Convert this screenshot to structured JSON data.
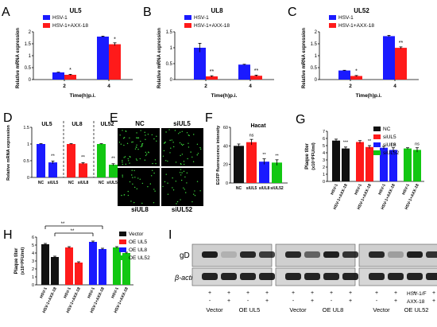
{
  "colors": {
    "blue": "#1a1aff",
    "red": "#ff1a1a",
    "green": "#12c712",
    "black": "#111111",
    "axis": "#000000"
  },
  "chart_data": [
    {
      "panel": "A",
      "type": "bar",
      "title": "UL5",
      "ylabel": "Relative mRNA expression",
      "xlabel": "Time(h)p.i.",
      "categories": [
        "2",
        "4"
      ],
      "ylim": [
        0,
        2.0
      ],
      "series": [
        {
          "name": "HSV-1",
          "color": "blue",
          "values": [
            0.3,
            1.8
          ],
          "err": [
            0.01,
            0.02
          ]
        },
        {
          "name": "HSV-1+AXX-18",
          "color": "red",
          "values": [
            0.2,
            1.48
          ],
          "err": [
            0.02,
            0.06
          ]
        }
      ],
      "stars": [
        "*",
        "*"
      ]
    },
    {
      "panel": "B",
      "type": "bar",
      "title": "UL8",
      "ylabel": "Relative mRNA expression",
      "xlabel": "Time(h)p.i.",
      "categories": [
        "2",
        "4"
      ],
      "ylim": [
        0,
        1.5
      ],
      "series": [
        {
          "name": "HSV-1",
          "color": "blue",
          "values": [
            1.0,
            0.47
          ],
          "err": [
            0.14,
            0.01
          ]
        },
        {
          "name": "HSV-1+AXX-18",
          "color": "red",
          "values": [
            0.1,
            0.12
          ],
          "err": [
            0.02,
            0.02
          ]
        }
      ],
      "stars": [
        "**",
        "**"
      ]
    },
    {
      "panel": "C",
      "type": "bar",
      "title": "UL52",
      "ylabel": "Relative mRNA expression",
      "xlabel": "Time(h)p.i.",
      "categories": [
        "2",
        "4"
      ],
      "ylim": [
        0,
        2.0
      ],
      "series": [
        {
          "name": "HSV-1",
          "color": "blue",
          "values": [
            0.38,
            1.82
          ],
          "err": [
            0.01,
            0.03
          ]
        },
        {
          "name": "HSV-1+AXX-18",
          "color": "red",
          "values": [
            0.15,
            1.33
          ],
          "err": [
            0.02,
            0.04
          ]
        }
      ],
      "stars": [
        "*",
        "**"
      ]
    },
    {
      "panel": "D",
      "type": "bar",
      "ylabel": "Relative mRNA expression",
      "ylim": [
        0,
        1.5
      ],
      "groups": [
        {
          "title": "UL5",
          "labels": [
            "NC",
            "siUL5"
          ],
          "colors": [
            "blue",
            "blue"
          ],
          "values": [
            1.0,
            0.45
          ],
          "err": [
            0.01,
            0.04
          ],
          "stars": [
            "",
            "**"
          ]
        },
        {
          "title": "UL8",
          "labels": [
            "NC",
            "siUL8"
          ],
          "colors": [
            "red",
            "red"
          ],
          "values": [
            1.0,
            0.42
          ],
          "err": [
            0.01,
            0.02
          ],
          "stars": [
            "",
            "**"
          ]
        },
        {
          "title": "UL52",
          "labels": [
            "NC",
            "siUL52"
          ],
          "colors": [
            "green",
            "green"
          ],
          "values": [
            1.0,
            0.38
          ],
          "err": [
            0.01,
            0.03
          ],
          "stars": [
            "",
            "**"
          ]
        }
      ]
    },
    {
      "panel": "F",
      "type": "bar",
      "title": "Hacat",
      "ylabel": "EGFP fluorescence intensity",
      "ylim": [
        0,
        60
      ],
      "categories": [
        "NC",
        "siUL5",
        "siUL8",
        "siUL52"
      ],
      "colors": [
        "black",
        "red",
        "blue",
        "green"
      ],
      "values": [
        40,
        44,
        23,
        22
      ],
      "err": [
        2,
        3,
        3,
        3
      ],
      "stars": [
        "",
        "ns",
        "**",
        "**"
      ]
    },
    {
      "panel": "G",
      "type": "bar",
      "ylabel": "Plaque titer",
      "ylabel2": "(x10⁵PFU/ml)",
      "ylim": [
        0,
        7
      ],
      "yticks": [
        0,
        1,
        2,
        3,
        4,
        5,
        6,
        7
      ],
      "groups": [
        {
          "name": "NC",
          "color": "black",
          "labels": [
            "HSV-1",
            "HSV-1+AXX-18"
          ],
          "values": [
            5.7,
            4.6
          ],
          "err": [
            0.2,
            0.2
          ],
          "stars": [
            "",
            "***"
          ]
        },
        {
          "name": "siUL5",
          "color": "red",
          "labels": [
            "HSV-1",
            "HSV-1+AXX-18"
          ],
          "values": [
            5.5,
            4.8
          ],
          "err": [
            0.2,
            0.2
          ],
          "stars": [
            "",
            "**"
          ]
        },
        {
          "name": "siUL8",
          "color": "blue",
          "labels": [
            "HSV-1",
            "HSV-1+AXX-18"
          ],
          "values": [
            4.7,
            4.4
          ],
          "err": [
            0.2,
            0.3
          ],
          "stars": [
            "",
            "ns"
          ]
        },
        {
          "name": "siUL52",
          "color": "green",
          "labels": [
            "HSV-1",
            "HSV-1+AXX-18"
          ],
          "values": [
            4.6,
            4.4
          ],
          "err": [
            0.1,
            0.3
          ],
          "stars": [
            "",
            "ns"
          ]
        }
      ]
    },
    {
      "panel": "H",
      "type": "bar",
      "ylabel": "Plaque titer",
      "ylabel2": "(x10⁵PFU/ml)",
      "ylim": [
        0,
        6
      ],
      "yticks": [
        0,
        1,
        2,
        3,
        4,
        5,
        6
      ],
      "groups": [
        {
          "name": "Vector",
          "color": "black",
          "labels": [
            "HSV-1",
            "HSV-1+AXX-18"
          ],
          "values": [
            5.1,
            3.5
          ],
          "err": [
            0.1,
            0.1
          ]
        },
        {
          "name": "OE UL5",
          "color": "red",
          "labels": [
            "HSV-1",
            "HSV-1+AXX-18"
          ],
          "values": [
            4.7,
            2.8
          ],
          "err": [
            0.1,
            0.1
          ]
        },
        {
          "name": "OE UL8",
          "color": "blue",
          "labels": [
            "HSV-1",
            "HSV-1+AXX-18"
          ],
          "values": [
            5.4,
            4.5
          ],
          "err": [
            0.1,
            0.1
          ]
        },
        {
          "name": "OE UL52",
          "color": "green",
          "labels": [
            "HSV-1",
            "HSV-1+AXX-18"
          ],
          "values": [
            4.7,
            4.0
          ],
          "err": [
            0.1,
            0.1
          ]
        }
      ],
      "brackets": [
        {
          "from": 0,
          "to": 5,
          "label": "**"
        },
        {
          "from": 1,
          "to": 4,
          "label": "**"
        }
      ]
    }
  ],
  "panelE": {
    "label": "E",
    "tiles": [
      {
        "label": "NC"
      },
      {
        "label": "siUL5"
      },
      {
        "label": "siUL8"
      },
      {
        "label": "siUL52"
      }
    ]
  },
  "panelI": {
    "label": "I",
    "rows": [
      "gD",
      "β-actin"
    ],
    "row_labels": [
      "HSV-1/F",
      "AXX-18"
    ],
    "blocks": [
      {
        "groups": [
          "Vector",
          "OE UL5"
        ],
        "signs": [
          [
            "+",
            "+",
            "+",
            "+"
          ],
          [
            "-",
            "+",
            "-",
            "+"
          ]
        ],
        "gd": [
          0.9,
          0.15,
          0.85,
          0.75
        ]
      },
      {
        "groups": [
          "Vector",
          "OE UL8"
        ],
        "signs": [
          [
            "+",
            "+",
            "+",
            "+"
          ],
          [
            "-",
            "+",
            "-",
            "+"
          ]
        ],
        "gd": [
          0.85,
          0.55,
          0.9,
          0.8
        ]
      },
      {
        "groups": [
          "Vector",
          "OE UL52"
        ],
        "signs": [
          [
            "+",
            "+",
            "+",
            "+"
          ],
          [
            "-",
            "+",
            "-",
            "+"
          ]
        ],
        "gd": [
          0.85,
          0.25,
          0.9,
          0.8
        ]
      }
    ]
  }
}
